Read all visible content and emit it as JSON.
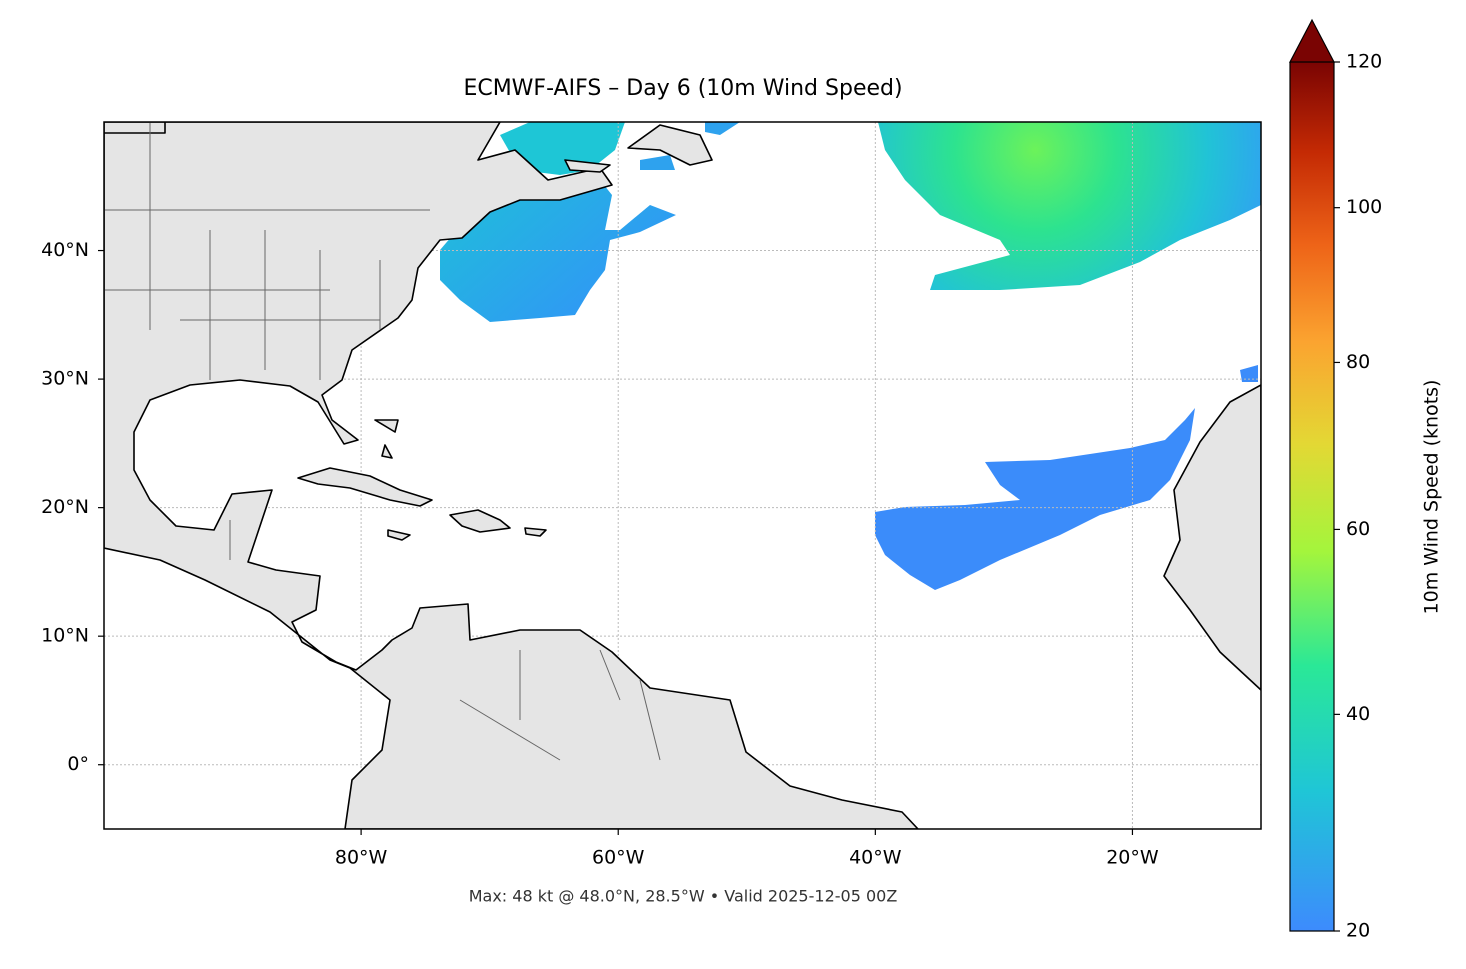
{
  "chart_data": {
    "type": "map",
    "title": "ECMWF-AIFS – Day 6 (10m Wind Speed)",
    "caption": "Max: 48 kt @ 48.0°N, 28.5°W • Valid 2025-12-05 00Z",
    "xlim": [
      -100,
      -10
    ],
    "ylim": [
      -5,
      50
    ],
    "xticks": [
      {
        "value": -80,
        "label": "80°W"
      },
      {
        "value": -60,
        "label": "60°W"
      },
      {
        "value": -40,
        "label": "40°W"
      },
      {
        "value": -20,
        "label": "20°W"
      }
    ],
    "yticks": [
      {
        "value": 0,
        "label": "0°"
      },
      {
        "value": 10,
        "label": "10°N"
      },
      {
        "value": 20,
        "label": "20°N"
      },
      {
        "value": 30,
        "label": "30°N"
      },
      {
        "value": 40,
        "label": "40°N"
      }
    ],
    "grid": true,
    "colorbar": {
      "label": "10m Wind Speed (knots)",
      "lim": [
        20,
        120
      ],
      "ticks": [
        20,
        40,
        60,
        80,
        100,
        120
      ],
      "norm": "power",
      "gamma": 0.7,
      "extend": "max",
      "colors": [
        "#3d8bfd",
        "#1fc6d6",
        "#2ae897",
        "#a4f53c",
        "#e3d834",
        "#fba430",
        "#ee6418",
        "#c42a04",
        "#7a0403"
      ]
    }
  }
}
